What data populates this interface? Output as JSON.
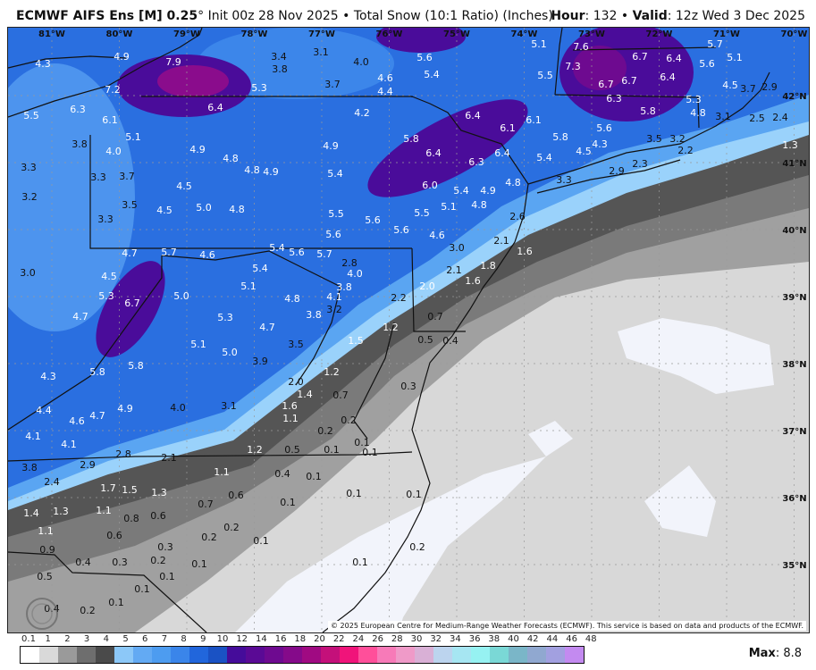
{
  "header": {
    "model": "ECMWF AIFS Ens [M] 0.25",
    "degree": "°",
    "description": "Init 00z 28 Nov 2025 • Total Snow (10:1 Ratio) (Inches)",
    "hour_label": "Hour",
    "hour_value": ": 132 • ",
    "valid_label": "Valid",
    "valid_value": ": 12z Wed 3 Dec 2025"
  },
  "map": {
    "longitude_labels": [
      "81°W",
      "80°W",
      "79°W",
      "78°W",
      "77°W",
      "76°W",
      "75°W",
      "74°W",
      "73°W",
      "72°W",
      "71°W",
      "70°W"
    ],
    "latitude_labels": [
      "42°N",
      "41°N",
      "40°N",
      "39°N",
      "38°N",
      "37°N",
      "36°N",
      "35°N"
    ],
    "values": [
      "4.3",
      "4.9",
      "7.9",
      "7.2",
      "3.4",
      "3.8",
      "3.1",
      "4.0",
      "3.7",
      "4.6",
      "4.4",
      "5.3",
      "5.5",
      "6.3",
      "6.1",
      "6.4",
      "4.2",
      "5.1",
      "3.8",
      "4.0",
      "4.9",
      "4.8",
      "4.8",
      "4.9",
      "4.9",
      "5.4",
      "3.3",
      "3.3",
      "3.7",
      "4.5",
      "5.0",
      "4.8",
      "3.2",
      "3.5",
      "4.5",
      "3.3",
      "5.5",
      "5.6",
      "5.6",
      "5.6",
      "5.6",
      "5.4",
      "5.1",
      "7.6",
      "7.3",
      "5.5",
      "6.7",
      "6.4",
      "5.7",
      "5.1",
      "5.6",
      "6.4",
      "6.7",
      "6.7",
      "4.5",
      "3.7",
      "2.9",
      "6.3",
      "5.8",
      "5.3",
      "4.8",
      "3.1",
      "2.5",
      "2.4",
      "6.4",
      "6.1",
      "6.1",
      "5.8",
      "5.6",
      "4.3",
      "4.5",
      "3.5",
      "3.2",
      "2.2",
      "1.3",
      "5.8",
      "6.4",
      "6.3",
      "6.4",
      "5.4",
      "2.9",
      "2.3",
      "3.3",
      "4.8",
      "6.0",
      "5.4",
      "4.9",
      "4.8",
      "5.1",
      "5.5",
      "2.6",
      "4.6",
      "3.0",
      "2.1",
      "1.6",
      "1.8",
      "2.1",
      "1.6",
      "2.0",
      "4.7",
      "5.7",
      "4.6",
      "5.4",
      "5.6",
      "5.7",
      "3.0",
      "4.5",
      "5.4",
      "2.8",
      "4.0",
      "3.8",
      "5.3",
      "6.7",
      "5.0",
      "5.1",
      "4.8",
      "4.1",
      "3.2",
      "2.2",
      "3.8",
      "4.7",
      "5.3",
      "4.7",
      "1.2",
      "0.7",
      "5.1",
      "5.0",
      "3.5",
      "3.9",
      "1.5",
      "0.5",
      "0.4",
      "5.8",
      "5.8",
      "4.3",
      "1.2",
      "0.3",
      "2.0",
      "1.4",
      "0.7",
      "1.6",
      "4.9",
      "4.0",
      "3.1",
      "1.1",
      "0.2",
      "4.4",
      "4.6",
      "4.7",
      "4.1",
      "4.1",
      "0.2",
      "0.1",
      "1.2",
      "0.5",
      "0.1",
      "0.1",
      "2.8",
      "2.1",
      "3.8",
      "2.9",
      "1.1",
      "0.4",
      "0.1",
      "2.4",
      "1.7",
      "1.5",
      "1.3",
      "0.6",
      "0.1",
      "0.1",
      "0.1",
      "0.7",
      "1.4",
      "1.3",
      "1.1",
      "0.8",
      "0.6",
      "0.2",
      "1.1",
      "0.6",
      "0.2",
      "0.1",
      "0.3",
      "0.9",
      "0.4",
      "0.3",
      "0.2",
      "0.1",
      "0.2",
      "0.1",
      "0.5",
      "0.1",
      "0.1",
      "0.1",
      "0.4",
      "0.2"
    ],
    "copyright": "© 2025 European Centre for Medium-Range Weather Forecasts (ECMWF). This service is based on data and products of the ECMWF.",
    "logo_text": "WeatherBELL",
    "colors": {
      "snow_heavy": "#5a0a95",
      "snow_moderate": "#2166dc",
      "snow_light": "#63aaf3",
      "trace": "#d8d8d8",
      "state_border": "#111111",
      "county_border": "#b9c3d6"
    }
  },
  "legend": {
    "ticks": [
      "0.1",
      "1",
      "2",
      "3",
      "4",
      "5",
      "6",
      "7",
      "8",
      "9",
      "10",
      "12",
      "14",
      "16",
      "18",
      "20",
      "22",
      "24",
      "26",
      "28",
      "30",
      "32",
      "34",
      "36",
      "38",
      "40",
      "42",
      "44",
      "46",
      "48"
    ],
    "colors": [
      "#ffffff",
      "#d9d9d9",
      "#9a9a9a",
      "#6e6e6e",
      "#4a4a4a",
      "#8cc8f8",
      "#63aaf3",
      "#4d9cf0",
      "#3a85ea",
      "#2166dc",
      "#1a52c4",
      "#450c9a",
      "#5a0a95",
      "#6e0a90",
      "#850a8a",
      "#a00a82",
      "#c4107a",
      "#f0147a",
      "#ff4f9a",
      "#f77ab8",
      "#ef9ac8",
      "#d9b0d6",
      "#bcd4ee",
      "#a6e6f2",
      "#96f2f2",
      "#7ad8d6",
      "#7ab6c8",
      "#90a8d0",
      "#a2a0e0",
      "#c38af0"
    ],
    "max_label": "Max",
    "max_value": ": 8.8"
  }
}
